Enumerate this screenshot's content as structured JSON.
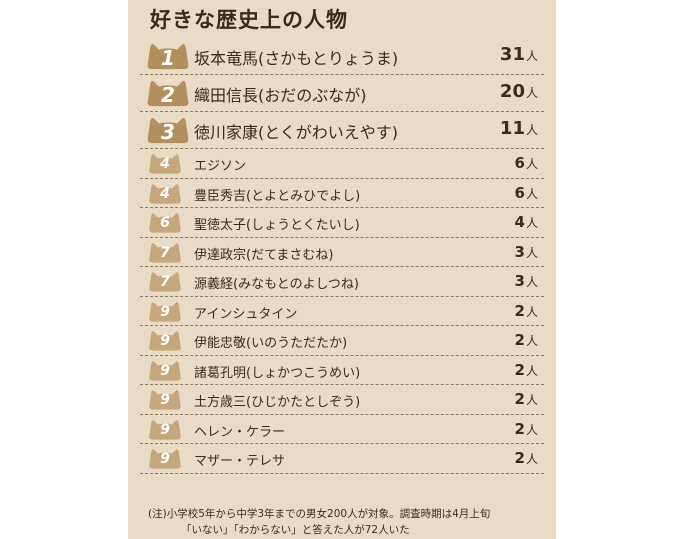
{
  "colors": {
    "panel": "#e9dcc6",
    "badge_big": "#b48f5e",
    "badge_small": "#c6a67b",
    "text": "#3a2b1c"
  },
  "chart_data": {
    "type": "table",
    "title": "好きな歴史上の人物",
    "unit": "人",
    "rows": [
      {
        "rank": "1",
        "name": "坂本竜馬(さかもとりょうま)",
        "value": 31
      },
      {
        "rank": "2",
        "name": "織田信長(おだのぶなが)",
        "value": 20
      },
      {
        "rank": "3",
        "name": "徳川家康(とくがわいえやす)",
        "value": 11
      },
      {
        "rank": "4",
        "name": "エジソン",
        "value": 6
      },
      {
        "rank": "4",
        "name": "豊臣秀吉(とよとみひでよし)",
        "value": 6
      },
      {
        "rank": "6",
        "name": "聖徳太子(しょうとくたいし)",
        "value": 4
      },
      {
        "rank": "7",
        "name": "伊達政宗(だてまさむね)",
        "value": 3
      },
      {
        "rank": "7",
        "name": "源義経(みなもとのよしつね)",
        "value": 3
      },
      {
        "rank": "9",
        "name": "アインシュタイン",
        "value": 2
      },
      {
        "rank": "9",
        "name": "伊能忠敬(いのうただたか)",
        "value": 2
      },
      {
        "rank": "9",
        "name": "諸葛孔明(しょかつこうめい)",
        "value": 2
      },
      {
        "rank": "9",
        "name": "土方歳三(ひじかたとしぞう)",
        "value": 2
      },
      {
        "rank": "9",
        "name": "ヘレン・ケラー",
        "value": 2
      },
      {
        "rank": "9",
        "name": "マザー・テレサ",
        "value": 2
      }
    ],
    "notes": [
      "(注)小学校5年から中学3年までの男女200人が対象。調査時期は4月上旬",
      "「いない」「わからない」と答えた人が72人いた"
    ]
  }
}
